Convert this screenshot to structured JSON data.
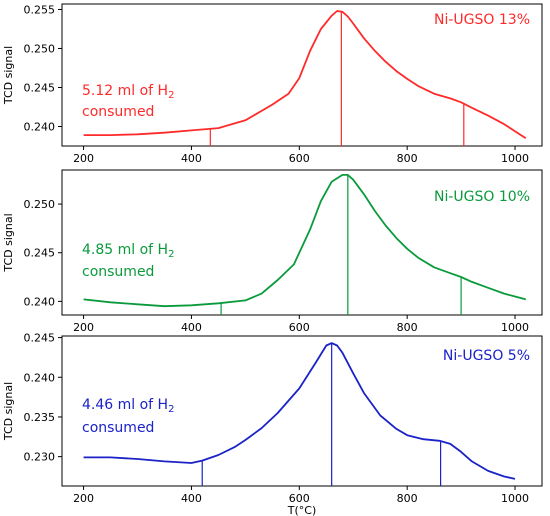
{
  "chart_data": [
    {
      "type": "line",
      "ylabel": "TCD signal",
      "xlabel": "",
      "xlim": [
        160,
        1050
      ],
      "ylim": [
        0.2375,
        0.2557
      ],
      "xticks": [
        200,
        400,
        600,
        800,
        1000
      ],
      "yticks": [
        0.24,
        0.245,
        0.25,
        0.255
      ],
      "ytick_labels": [
        "0.240",
        "0.245",
        "0.250",
        "0.255"
      ],
      "grid": false,
      "series": [
        {
          "name": "Ni-UGSO 13%",
          "color": "#ff2a2a",
          "x": [
            200,
            250,
            300,
            350,
            400,
            450,
            500,
            550,
            580,
            600,
            620,
            640,
            660,
            670,
            680,
            690,
            700,
            720,
            740,
            760,
            780,
            800,
            820,
            850,
            880,
            900,
            920,
            950,
            980,
            1000,
            1020
          ],
          "y": [
            0.2389,
            0.2389,
            0.239,
            0.2392,
            0.2395,
            0.2398,
            0.2408,
            0.2428,
            0.2442,
            0.2462,
            0.2497,
            0.2525,
            0.2542,
            0.2548,
            0.2547,
            0.2541,
            0.2532,
            0.2513,
            0.2497,
            0.2483,
            0.2471,
            0.2461,
            0.2452,
            0.2442,
            0.2436,
            0.2431,
            0.2424,
            0.2414,
            0.2403,
            0.2394,
            0.2385
          ]
        }
      ],
      "markers": [
        435,
        678,
        905
      ],
      "annotations": {
        "amount": "5.12 ml of H",
        "subscript": "2",
        "word": "consumed"
      }
    },
    {
      "type": "line",
      "ylabel": "TCD signal",
      "xlabel": "",
      "xlim": [
        160,
        1050
      ],
      "ylim": [
        0.2386,
        0.2535
      ],
      "xticks": [
        200,
        400,
        600,
        800,
        1000
      ],
      "yticks": [
        0.24,
        0.245,
        0.25
      ],
      "ytick_labels": [
        "0.240",
        "0.245",
        "0.250"
      ],
      "grid": false,
      "series": [
        {
          "name": "Ni-UGSO 10%",
          "color": "#0a9a3c",
          "x": [
            200,
            250,
            300,
            350,
            400,
            450,
            500,
            530,
            560,
            590,
            620,
            640,
            660,
            680,
            690,
            700,
            720,
            740,
            760,
            780,
            800,
            820,
            850,
            880,
            900,
            920,
            950,
            980,
            1000,
            1020
          ],
          "y": [
            0.2402,
            0.2399,
            0.2397,
            0.2395,
            0.2396,
            0.2398,
            0.2401,
            0.2408,
            0.2422,
            0.2438,
            0.2474,
            0.2503,
            0.2523,
            0.253,
            0.253,
            0.2525,
            0.251,
            0.2493,
            0.2478,
            0.2465,
            0.2454,
            0.2445,
            0.2435,
            0.2429,
            0.2425,
            0.242,
            0.2414,
            0.2408,
            0.2405,
            0.2402
          ]
        }
      ],
      "markers": [
        455,
        690,
        900
      ],
      "annotations": {
        "amount": "4.85 ml of H",
        "subscript": "2",
        "word": "consumed"
      }
    },
    {
      "type": "line",
      "ylabel": "TCD signal",
      "xlabel": "T(°C)",
      "xlim": [
        160,
        1050
      ],
      "ylim": [
        0.2263,
        0.2452
      ],
      "xticks": [
        200,
        400,
        600,
        800,
        1000
      ],
      "yticks": [
        0.23,
        0.235,
        0.24,
        0.245
      ],
      "ytick_labels": [
        "0.230",
        "0.235",
        "0.240",
        "0.245"
      ],
      "grid": false,
      "series": [
        {
          "name": "Ni-UGSO 5%",
          "color": "#1a22c8",
          "x": [
            200,
            250,
            300,
            350,
            400,
            420,
            450,
            480,
            500,
            530,
            560,
            600,
            630,
            650,
            660,
            670,
            680,
            700,
            720,
            750,
            780,
            800,
            830,
            860,
            880,
            900,
            920,
            950,
            980,
            1000
          ],
          "y": [
            0.2299,
            0.2299,
            0.2297,
            0.2294,
            0.2292,
            0.2295,
            0.2302,
            0.2312,
            0.2321,
            0.2336,
            0.2355,
            0.2386,
            0.2418,
            0.244,
            0.2443,
            0.244,
            0.2431,
            0.2405,
            0.238,
            0.2352,
            0.2335,
            0.2327,
            0.2322,
            0.232,
            0.2316,
            0.2306,
            0.2294,
            0.2282,
            0.2275,
            0.2272
          ]
        }
      ],
      "markers": [
        420,
        660,
        862
      ],
      "annotations": {
        "amount": "4.46 ml of H",
        "subscript": "2",
        "word": "consumed"
      }
    }
  ]
}
